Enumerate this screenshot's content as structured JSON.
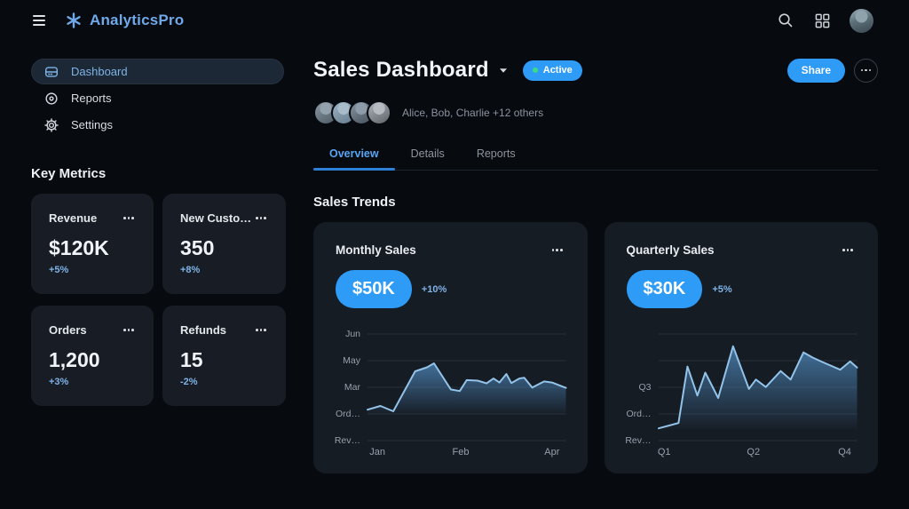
{
  "colors": {
    "background": "#070a0f",
    "card": "#181d25",
    "chart_card": "#161c24",
    "accent": "#2e9bf7",
    "light_blue": "#7fb2e6",
    "muted": "#8b939f",
    "primary": "#edf1f5",
    "line": "#93c3e9",
    "area_top": "#4a80b0",
    "grid": "#39414d",
    "green": "#3ddc84",
    "active_pill": "#1c2836",
    "tab_active": "#57a5f3"
  },
  "topbar": {
    "brand": "AnalyticsPro"
  },
  "sidebar": {
    "items": [
      {
        "label": "Dashboard",
        "icon": "drawer-icon",
        "active": true
      },
      {
        "label": "Reports",
        "icon": "target-icon",
        "active": false
      },
      {
        "label": "Settings",
        "icon": "gear-icon",
        "active": false
      }
    ],
    "section_title": "Key Metrics"
  },
  "metrics": [
    {
      "title": "Revenue",
      "value": "$120K",
      "delta": "+5%"
    },
    {
      "title": "New Custo…",
      "value": "350",
      "delta": "+8%"
    },
    {
      "title": "Orders",
      "value": "1,200",
      "delta": "+3%"
    },
    {
      "title": "Refunds",
      "value": "15",
      "delta": "-2%"
    }
  ],
  "header": {
    "title": "Sales Dashboard",
    "status": "Active",
    "collaborators": "Alice, Bob, Charlie +12 others",
    "collaborator_avatar_count": 4,
    "share_label": "Share"
  },
  "tabs": [
    {
      "label": "Overview",
      "active": true
    },
    {
      "label": "Details",
      "active": false
    },
    {
      "label": "Reports",
      "active": false
    }
  ],
  "section": {
    "title": "Sales Trends"
  },
  "chart_data": [
    {
      "type": "area",
      "title": "Monthly Sales",
      "badge_value": "$50K",
      "delta": "+10%",
      "y_ticks": [
        "Jun",
        "May",
        "Mar",
        "Ord…",
        "Rev…"
      ],
      "x_ticks": [
        {
          "label": "Jan",
          "pos": 0.05
        },
        {
          "label": "Feb",
          "pos": 0.47
        },
        {
          "label": "Apr",
          "pos": 0.93
        }
      ],
      "ylim": [
        0,
        4
      ],
      "baseline": 1.0,
      "grid": true,
      "points": [
        [
          0,
          1.16
        ],
        [
          0.065,
          1.3
        ],
        [
          0.13,
          1.1
        ],
        [
          0.24,
          2.6
        ],
        [
          0.3,
          2.75
        ],
        [
          0.335,
          2.9
        ],
        [
          0.42,
          1.92
        ],
        [
          0.465,
          1.86
        ],
        [
          0.5,
          2.27
        ],
        [
          0.555,
          2.25
        ],
        [
          0.6,
          2.15
        ],
        [
          0.635,
          2.33
        ],
        [
          0.665,
          2.18
        ],
        [
          0.7,
          2.5
        ],
        [
          0.725,
          2.16
        ],
        [
          0.765,
          2.33
        ],
        [
          0.79,
          2.36
        ],
        [
          0.83,
          1.99
        ],
        [
          0.89,
          2.22
        ],
        [
          0.93,
          2.18
        ],
        [
          1,
          1.98
        ]
      ]
    },
    {
      "type": "area",
      "title": "Quarterly Sales",
      "badge_value": "$30K",
      "delta": "+5%",
      "y_ticks": [
        "",
        "",
        "Q3",
        "Ord…",
        "Rev…"
      ],
      "x_ticks": [
        {
          "label": "Q1",
          "pos": 0.03
        },
        {
          "label": "Q2",
          "pos": 0.48
        },
        {
          "label": "Q4",
          "pos": 0.94
        }
      ],
      "ylim": [
        0,
        4
      ],
      "baseline": 0.45,
      "grid": true,
      "points": [
        [
          0,
          0.46
        ],
        [
          0.1,
          0.66
        ],
        [
          0.145,
          2.78
        ],
        [
          0.195,
          1.69
        ],
        [
          0.235,
          2.55
        ],
        [
          0.3,
          1.6
        ],
        [
          0.375,
          3.54
        ],
        [
          0.455,
          1.94
        ],
        [
          0.49,
          2.29
        ],
        [
          0.54,
          2.01
        ],
        [
          0.615,
          2.61
        ],
        [
          0.665,
          2.29
        ],
        [
          0.73,
          3.31
        ],
        [
          0.775,
          3.12
        ],
        [
          0.825,
          2.95
        ],
        [
          0.915,
          2.66
        ],
        [
          0.965,
          2.97
        ],
        [
          1,
          2.74
        ]
      ]
    }
  ]
}
